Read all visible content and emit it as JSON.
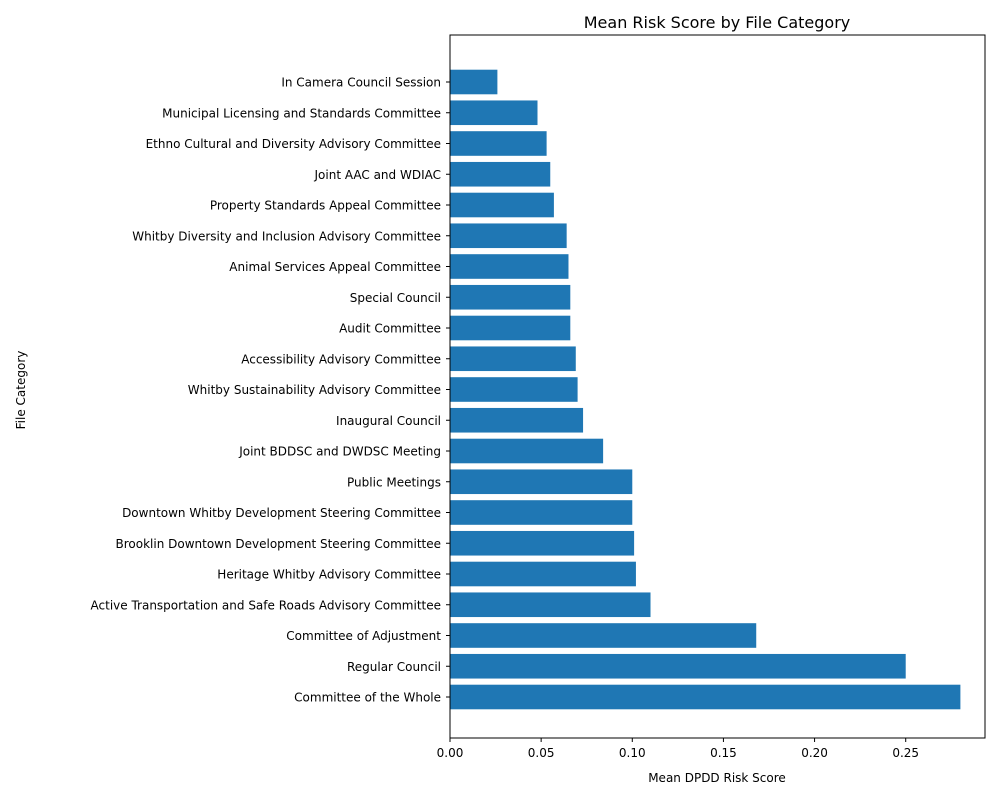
{
  "chart_data": {
    "type": "bar",
    "orientation": "horizontal",
    "title": "Mean Risk Score by File Category",
    "xlabel": "Mean DPDD Risk Score",
    "ylabel": "File Category",
    "xlim": [
      0,
      0.2935
    ],
    "xticks": [
      "0.00",
      "0.05",
      "0.10",
      "0.15",
      "0.20",
      "0.25"
    ],
    "bar_color": "#1f77b4",
    "grid": false,
    "categories": [
      "In Camera Council Session",
      "Municipal Licensing and Standards Committee",
      "Ethno Cultural and Diversity Advisory Committee",
      "Joint AAC and WDIAC",
      "Property Standards Appeal Committee",
      "Whitby Diversity and Inclusion Advisory Committee",
      "Animal Services Appeal Committee",
      "Special Council",
      "Audit Committee",
      "Accessibility Advisory Committee",
      "Whitby Sustainability Advisory Committee",
      "Inaugural Council",
      "Joint BDDSC and DWDSC Meeting",
      "Public Meetings",
      "Downtown Whitby Development Steering Committee",
      "Brooklin Downtown Development Steering Committee",
      "Heritage Whitby Advisory Committee",
      "Active Transportation and Safe Roads Advisory Committee",
      "Committee of Adjustment",
      "Regular Council",
      "Committee of the Whole"
    ],
    "values": [
      0.026,
      0.048,
      0.053,
      0.055,
      0.057,
      0.064,
      0.065,
      0.066,
      0.066,
      0.069,
      0.07,
      0.073,
      0.084,
      0.1,
      0.1,
      0.101,
      0.102,
      0.11,
      0.168,
      0.25,
      0.28
    ]
  }
}
